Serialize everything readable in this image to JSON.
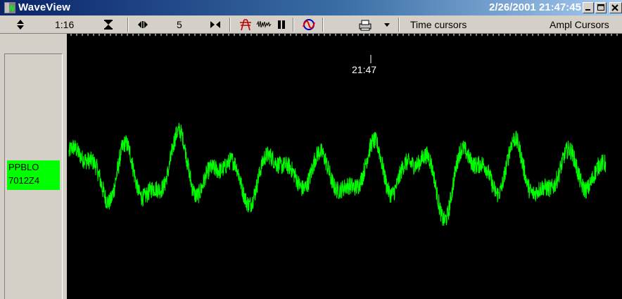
{
  "window": {
    "title": "WaveView",
    "datetime": "2/26/2001 21:47:45",
    "caption_buttons": [
      "minimize",
      "maximize",
      "close"
    ]
  },
  "toolbar": {
    "amp_zoom_value": "1:16",
    "time_zoom_value": "5",
    "time_cursors_label": "Time cursors",
    "ampl_cursors_label": "Ampl Cursors",
    "icons": [
      "amp-zoom-updown-icon",
      "amp-zoom-hourglass-icon",
      "time-expand-icon",
      "time-compress-icon",
      "tower-icon",
      "squiggle-icon",
      "pause-icon",
      "waveform-filter-icon",
      "printer-icon",
      "dropdown-arrow-icon"
    ]
  },
  "plot": {
    "time_label": "21:47",
    "background_color": "#000000",
    "trace_color": "#00ff00"
  },
  "channel": {
    "line1": "PPBLO",
    "line2": "7012Z4",
    "color": "#00ff00"
  }
}
